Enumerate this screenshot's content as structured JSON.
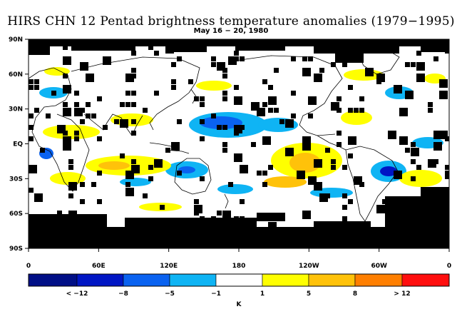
{
  "title": "HIRS CHN 12 Pentad brightness temperature anomalies (1979−1995)",
  "subtitle": "May 16 − 20, 1980",
  "map": {
    "y_ticks": [
      "90N",
      "60N",
      "30N",
      "EQ",
      "30S",
      "60S",
      "90S"
    ],
    "x_ticks": [
      "0",
      "60E",
      "120E",
      "180",
      "120W",
      "60W",
      "0"
    ],
    "colors": {
      "missing": "#000000",
      "neutral": "#ffffff"
    }
  },
  "colorbar": {
    "unit": "K",
    "bins": [
      {
        "color": "#000f86"
      },
      {
        "color": "#0016c4"
      },
      {
        "color": "#0a62f0"
      },
      {
        "color": "#0fb4f4"
      },
      {
        "color": "#ffffff"
      },
      {
        "color": "#ffff00"
      },
      {
        "color": "#ffc20a"
      },
      {
        "color": "#ff7f00"
      },
      {
        "color": "#ff0f0f"
      }
    ],
    "labels": [
      "< −12",
      "−8",
      "−5",
      "−1",
      "1",
      "5",
      "8",
      "> 12"
    ]
  }
}
